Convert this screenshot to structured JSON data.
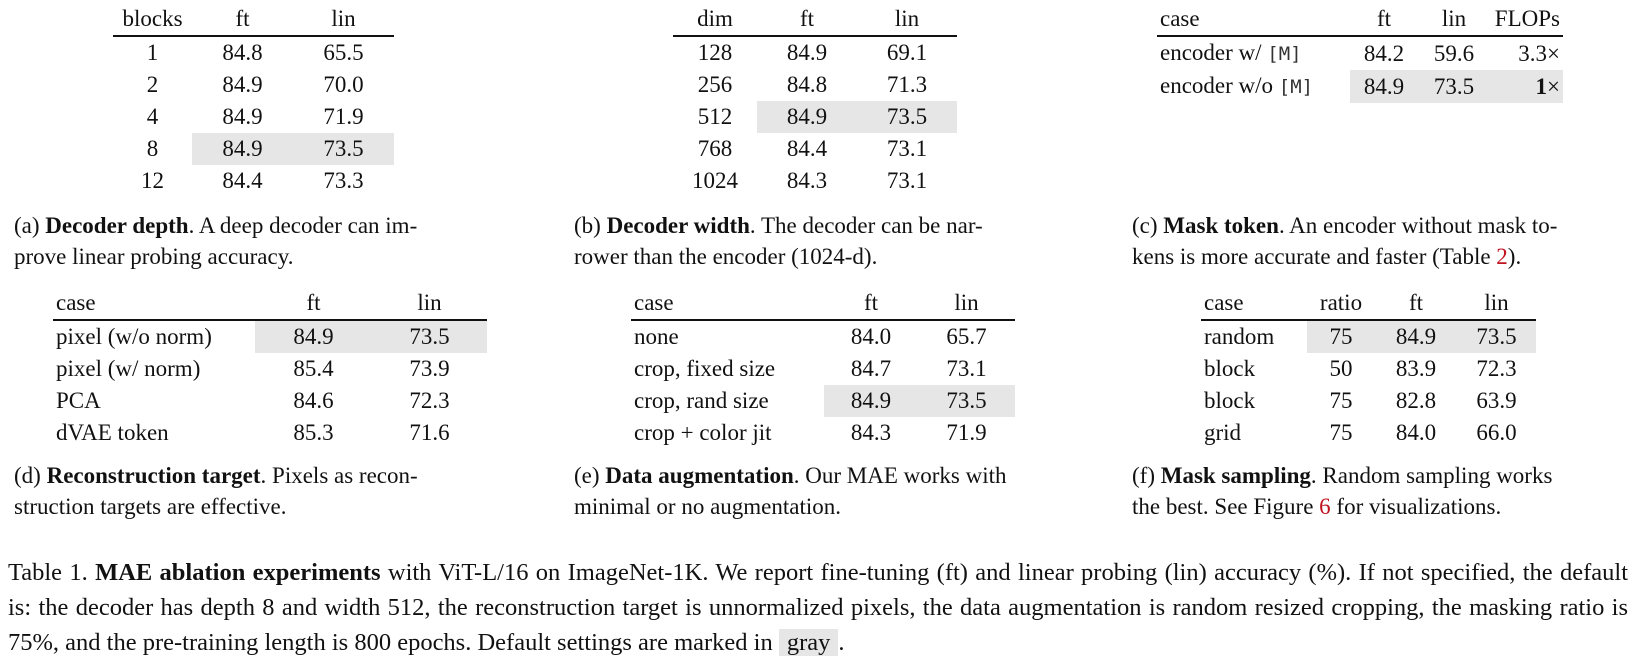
{
  "tables": {
    "a": {
      "headers": [
        "blocks",
        "ft",
        "lin"
      ],
      "rows": [
        {
          "cells": [
            "1",
            "84.8",
            "65.5"
          ],
          "bold": [
            false,
            false,
            false
          ],
          "default": false
        },
        {
          "cells": [
            "2",
            "84.9",
            "70.0"
          ],
          "bold": [
            false,
            true,
            false
          ],
          "default": false
        },
        {
          "cells": [
            "4",
            "84.9",
            "71.9"
          ],
          "bold": [
            false,
            true,
            false
          ],
          "default": false
        },
        {
          "cells": [
            "8",
            "84.9",
            "73.5"
          ],
          "bold": [
            false,
            true,
            true
          ],
          "default": true
        },
        {
          "cells": [
            "12",
            "84.4",
            "73.3"
          ],
          "bold": [
            false,
            false,
            false
          ],
          "default": false
        }
      ],
      "caption": {
        "label": "(a)",
        "title": "Decoder depth",
        "text": ". A deep decoder can im-",
        "line2": "prove linear probing accuracy."
      }
    },
    "b": {
      "headers": [
        "dim",
        "ft",
        "lin"
      ],
      "rows": [
        {
          "cells": [
            "128",
            "84.9",
            "69.1"
          ],
          "bold": [
            false,
            true,
            false
          ],
          "default": false
        },
        {
          "cells": [
            "256",
            "84.8",
            "71.3"
          ],
          "bold": [
            false,
            false,
            false
          ],
          "default": false
        },
        {
          "cells": [
            "512",
            "84.9",
            "73.5"
          ],
          "bold": [
            false,
            true,
            true
          ],
          "default": true
        },
        {
          "cells": [
            "768",
            "84.4",
            "73.1"
          ],
          "bold": [
            false,
            false,
            false
          ],
          "default": false
        },
        {
          "cells": [
            "1024",
            "84.3",
            "73.1"
          ],
          "bold": [
            false,
            false,
            false
          ],
          "default": false
        }
      ],
      "caption": {
        "label": "(b)",
        "title": "Decoder width",
        "text": ". The decoder can be nar-",
        "line2": "rower than the encoder (1024-d)."
      }
    },
    "c": {
      "headers": [
        "case",
        "ft",
        "lin",
        "FLOPs"
      ],
      "rows": [
        {
          "case": "encoder w/",
          "token": "[M]",
          "cells": [
            "84.2",
            "59.6",
            "3.3"
          ],
          "times": "×",
          "bold": [
            false,
            false,
            false
          ],
          "default": false
        },
        {
          "case": "encoder w/o",
          "token": "[M]",
          "cells": [
            "84.9",
            "73.5",
            "1"
          ],
          "times": "×",
          "bold": [
            true,
            true,
            true
          ],
          "default": true
        }
      ],
      "caption": {
        "label": "(c)",
        "title": "Mask token",
        "text": ". An encoder without mask to-",
        "line2": "kens is more accurate and faster (Table ",
        "ref": "2",
        "end": ")."
      }
    },
    "d": {
      "headers": [
        "case",
        "ft",
        "lin"
      ],
      "rows": [
        {
          "cells": [
            "pixel (w/o norm)",
            "84.9",
            "73.5"
          ],
          "bold": [
            false,
            false,
            false
          ],
          "default": true
        },
        {
          "cells": [
            "pixel (w/ norm)",
            "85.4",
            "73.9"
          ],
          "bold": [
            false,
            true,
            true
          ],
          "default": false
        },
        {
          "cells": [
            "PCA",
            "84.6",
            "72.3"
          ],
          "bold": [
            false,
            false,
            false
          ],
          "default": false
        },
        {
          "cells": [
            "dVAE token",
            "85.3",
            "71.6"
          ],
          "bold": [
            false,
            false,
            false
          ],
          "default": false
        }
      ],
      "caption": {
        "label": "(d)",
        "title": "Reconstruction target",
        "text": ". Pixels as recon-",
        "line2": "struction targets are effective."
      }
    },
    "e": {
      "headers": [
        "case",
        "ft",
        "lin"
      ],
      "rows": [
        {
          "cells": [
            "none",
            "84.0",
            "65.7"
          ],
          "bold": [
            false,
            false,
            false
          ],
          "default": false
        },
        {
          "cells": [
            "crop, fixed size",
            "84.7",
            "73.1"
          ],
          "bold": [
            false,
            false,
            false
          ],
          "default": false
        },
        {
          "cells": [
            "crop, rand size",
            "84.9",
            "73.5"
          ],
          "bold": [
            false,
            true,
            true
          ],
          "default": true
        },
        {
          "cells": [
            "crop + color jit",
            "84.3",
            "71.9"
          ],
          "bold": [
            false,
            false,
            false
          ],
          "default": false
        }
      ],
      "caption": {
        "label": "(e)",
        "title": "Data augmentation",
        "text": ". Our MAE works with",
        "line2": "minimal or no augmentation."
      }
    },
    "f": {
      "headers": [
        "case",
        "ratio",
        "ft",
        "lin"
      ],
      "rows": [
        {
          "cells": [
            "random",
            "75",
            "84.9",
            "73.5"
          ],
          "bold": [
            false,
            false,
            true,
            true
          ],
          "default": true
        },
        {
          "cells": [
            "block",
            "50",
            "83.9",
            "72.3"
          ],
          "bold": [
            false,
            false,
            false,
            false
          ],
          "default": false
        },
        {
          "cells": [
            "block",
            "75",
            "82.8",
            "63.9"
          ],
          "bold": [
            false,
            false,
            false,
            false
          ],
          "default": false
        },
        {
          "cells": [
            "grid",
            "75",
            "84.0",
            "66.0"
          ],
          "bold": [
            false,
            false,
            false,
            false
          ],
          "default": false
        }
      ],
      "caption": {
        "label": "(f)",
        "title": "Mask sampling",
        "text": ". Random sampling works",
        "line2": "the best. See Figure ",
        "ref": "6",
        "end": " for visualizations."
      }
    }
  },
  "main_caption": {
    "prefix": "Table 1. ",
    "title": "MAE ablation experiments",
    "body": " with ViT-L/16 on ImageNet-1K. We report fine-tuning (ft) and linear probing (lin) accuracy (%). If not specified, the default is: the decoder has depth 8 and width 512, the reconstruction target is unnormalized pixels, the data augmentation is random resized cropping, the masking ratio is 75%, and the pre-training length is 800 epochs. Default settings are marked in ",
    "gray_word": "gray",
    "end": "."
  },
  "colors": {
    "default_highlight": "#e6e6e6",
    "reference": "#c1121f"
  }
}
